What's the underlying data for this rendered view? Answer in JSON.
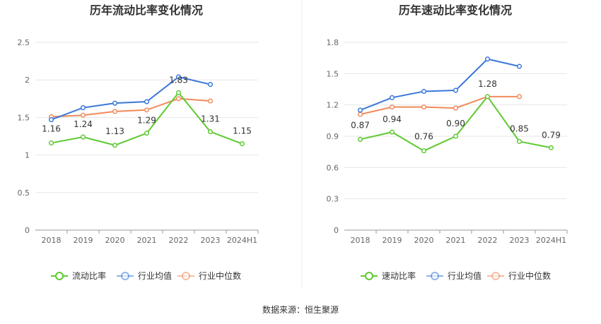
{
  "colors": {
    "main": "#5fca32",
    "avg": "#3a78d8",
    "median": "#f08a5a",
    "grid": "#e6e6e6",
    "axis": "#999999"
  },
  "source": "数据来源：恒生聚源",
  "chart_data": [
    {
      "type": "line",
      "title": "历年流动比率变化情况",
      "categories": [
        "2018",
        "2019",
        "2020",
        "2021",
        "2022",
        "2023",
        "2024H1"
      ],
      "ylim": [
        0,
        2.5
      ],
      "yticks": [
        "0",
        "0.5",
        "1",
        "1.5",
        "2",
        "2.5"
      ],
      "grid": true,
      "legend_position": "bottom",
      "series": [
        {
          "name": "流动比率",
          "key": "main",
          "values": [
            1.16,
            1.24,
            1.13,
            1.29,
            1.83,
            1.31,
            1.15
          ],
          "labels": [
            "1.16",
            "1.24",
            "1.13",
            "1.29",
            "1.83",
            "1.31",
            "1.15"
          ]
        },
        {
          "name": "行业均值",
          "key": "avg",
          "values": [
            1.47,
            1.63,
            1.69,
            1.71,
            2.04,
            1.94,
            null
          ]
        },
        {
          "name": "行业中位数",
          "key": "median",
          "values": [
            1.51,
            1.53,
            1.58,
            1.6,
            1.75,
            1.72,
            null
          ]
        }
      ]
    },
    {
      "type": "line",
      "title": "历年速动比率变化情况",
      "categories": [
        "2018",
        "2019",
        "2020",
        "2021",
        "2022",
        "2023",
        "2024H1"
      ],
      "ylim": [
        0,
        1.8
      ],
      "yticks": [
        "0",
        "0.3",
        "0.6",
        "0.9",
        "1.2",
        "1.5",
        "1.8"
      ],
      "grid": true,
      "legend_position": "bottom",
      "series": [
        {
          "name": "速动比率",
          "key": "main",
          "values": [
            0.87,
            0.94,
            0.76,
            0.9,
            1.28,
            0.85,
            0.79
          ],
          "labels": [
            "0.87",
            "0.94",
            "0.76",
            "0.90",
            "1.28",
            "0.85",
            "0.79"
          ]
        },
        {
          "name": "行业均值",
          "key": "avg",
          "values": [
            1.15,
            1.27,
            1.33,
            1.34,
            1.64,
            1.57,
            null
          ]
        },
        {
          "name": "行业中位数",
          "key": "median",
          "values": [
            1.11,
            1.18,
            1.18,
            1.17,
            1.28,
            1.28,
            null
          ]
        }
      ]
    }
  ]
}
